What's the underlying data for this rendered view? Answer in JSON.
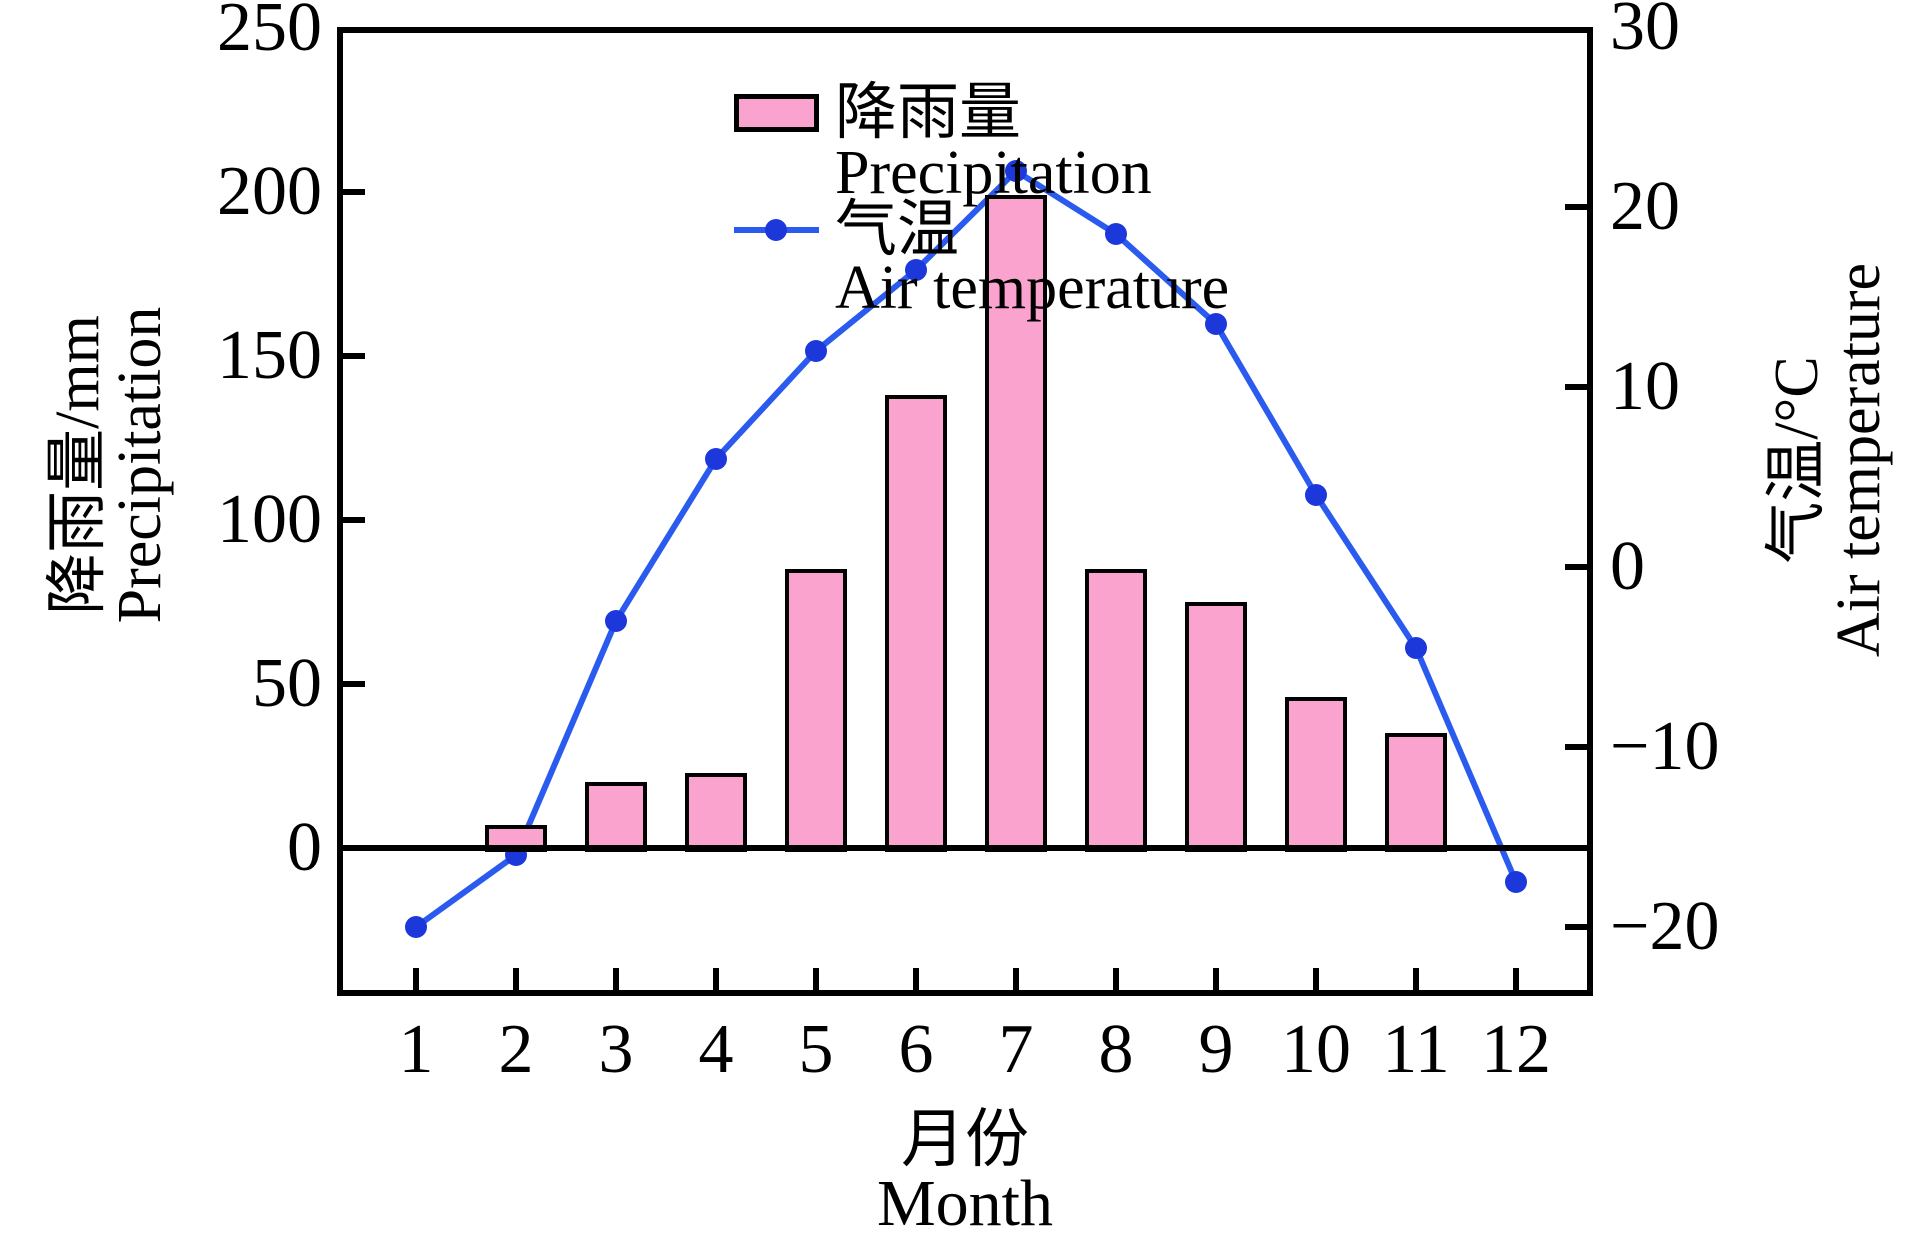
{
  "chart_data": {
    "type": "combo",
    "categories": [
      1,
      2,
      3,
      4,
      5,
      6,
      7,
      8,
      9,
      10,
      11,
      12
    ],
    "series": [
      {
        "name_zh": "降雨量",
        "name_en": "Precipitation",
        "type": "bar",
        "axis": "left",
        "unit": "mm",
        "values": [
          0,
          7,
          20,
          23,
          85,
          138,
          199,
          85,
          75,
          46,
          35,
          0
        ]
      },
      {
        "name_zh": "气温",
        "name_en": "Air temperature",
        "type": "line",
        "axis": "right",
        "unit": "°C",
        "values": [
          -20,
          -16,
          -3,
          6,
          12,
          16.5,
          22,
          18.5,
          13.5,
          4,
          -4.5,
          -17.5
        ]
      }
    ],
    "axes": {
      "left": {
        "title_zh": "降雨量/mm",
        "title_en": "Precipitation",
        "ticks": [
          250,
          200,
          150,
          100,
          50,
          0
        ],
        "range": [
          0,
          250
        ]
      },
      "right": {
        "title_zh": "气温/°C",
        "title_en": "Air temperature",
        "ticks": [
          30,
          20,
          10,
          0,
          -10,
          -20
        ],
        "range": [
          -20,
          30
        ]
      },
      "x": {
        "title_zh": "月份",
        "title_en": "Month",
        "ticks": [
          1,
          2,
          3,
          4,
          5,
          6,
          7,
          8,
          9,
          10,
          11,
          12
        ]
      }
    },
    "colors": {
      "bar_fill": "#FBA3CF",
      "bar_border": "#000000",
      "line": "#2A5BEE",
      "marker": "#1C38DB",
      "axis": "#000000"
    },
    "grid": false,
    "legend_position": "top-left-inside"
  }
}
